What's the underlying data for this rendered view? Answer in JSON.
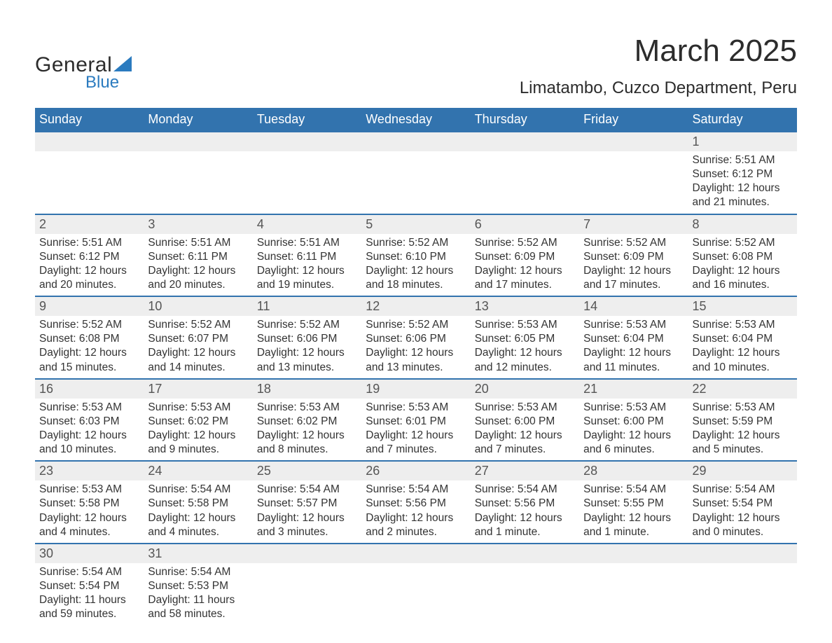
{
  "logo": {
    "line1": "General",
    "line2": "Blue",
    "sail_color": "#2b7bbf",
    "text_color": "#2c2c2c"
  },
  "title": "March 2025",
  "subtitle": "Limatambo, Cuzco Department, Peru",
  "colors": {
    "header_bg": "#3273ae",
    "header_text": "#ffffff",
    "daynum_bg": "#eeeeee",
    "border": "#3273ae",
    "body_text": "#333333",
    "page_bg": "#ffffff"
  },
  "weekdays": [
    "Sunday",
    "Monday",
    "Tuesday",
    "Wednesday",
    "Thursday",
    "Friday",
    "Saturday"
  ],
  "weeks": [
    [
      {
        "day": "",
        "sunrise": "",
        "sunset": "",
        "daylight": ""
      },
      {
        "day": "",
        "sunrise": "",
        "sunset": "",
        "daylight": ""
      },
      {
        "day": "",
        "sunrise": "",
        "sunset": "",
        "daylight": ""
      },
      {
        "day": "",
        "sunrise": "",
        "sunset": "",
        "daylight": ""
      },
      {
        "day": "",
        "sunrise": "",
        "sunset": "",
        "daylight": ""
      },
      {
        "day": "",
        "sunrise": "",
        "sunset": "",
        "daylight": ""
      },
      {
        "day": "1",
        "sunrise": "Sunrise: 5:51 AM",
        "sunset": "Sunset: 6:12 PM",
        "daylight": "Daylight: 12 hours and 21 minutes."
      }
    ],
    [
      {
        "day": "2",
        "sunrise": "Sunrise: 5:51 AM",
        "sunset": "Sunset: 6:12 PM",
        "daylight": "Daylight: 12 hours and 20 minutes."
      },
      {
        "day": "3",
        "sunrise": "Sunrise: 5:51 AM",
        "sunset": "Sunset: 6:11 PM",
        "daylight": "Daylight: 12 hours and 20 minutes."
      },
      {
        "day": "4",
        "sunrise": "Sunrise: 5:51 AM",
        "sunset": "Sunset: 6:11 PM",
        "daylight": "Daylight: 12 hours and 19 minutes."
      },
      {
        "day": "5",
        "sunrise": "Sunrise: 5:52 AM",
        "sunset": "Sunset: 6:10 PM",
        "daylight": "Daylight: 12 hours and 18 minutes."
      },
      {
        "day": "6",
        "sunrise": "Sunrise: 5:52 AM",
        "sunset": "Sunset: 6:09 PM",
        "daylight": "Daylight: 12 hours and 17 minutes."
      },
      {
        "day": "7",
        "sunrise": "Sunrise: 5:52 AM",
        "sunset": "Sunset: 6:09 PM",
        "daylight": "Daylight: 12 hours and 17 minutes."
      },
      {
        "day": "8",
        "sunrise": "Sunrise: 5:52 AM",
        "sunset": "Sunset: 6:08 PM",
        "daylight": "Daylight: 12 hours and 16 minutes."
      }
    ],
    [
      {
        "day": "9",
        "sunrise": "Sunrise: 5:52 AM",
        "sunset": "Sunset: 6:08 PM",
        "daylight": "Daylight: 12 hours and 15 minutes."
      },
      {
        "day": "10",
        "sunrise": "Sunrise: 5:52 AM",
        "sunset": "Sunset: 6:07 PM",
        "daylight": "Daylight: 12 hours and 14 minutes."
      },
      {
        "day": "11",
        "sunrise": "Sunrise: 5:52 AM",
        "sunset": "Sunset: 6:06 PM",
        "daylight": "Daylight: 12 hours and 13 minutes."
      },
      {
        "day": "12",
        "sunrise": "Sunrise: 5:52 AM",
        "sunset": "Sunset: 6:06 PM",
        "daylight": "Daylight: 12 hours and 13 minutes."
      },
      {
        "day": "13",
        "sunrise": "Sunrise: 5:53 AM",
        "sunset": "Sunset: 6:05 PM",
        "daylight": "Daylight: 12 hours and 12 minutes."
      },
      {
        "day": "14",
        "sunrise": "Sunrise: 5:53 AM",
        "sunset": "Sunset: 6:04 PM",
        "daylight": "Daylight: 12 hours and 11 minutes."
      },
      {
        "day": "15",
        "sunrise": "Sunrise: 5:53 AM",
        "sunset": "Sunset: 6:04 PM",
        "daylight": "Daylight: 12 hours and 10 minutes."
      }
    ],
    [
      {
        "day": "16",
        "sunrise": "Sunrise: 5:53 AM",
        "sunset": "Sunset: 6:03 PM",
        "daylight": "Daylight: 12 hours and 10 minutes."
      },
      {
        "day": "17",
        "sunrise": "Sunrise: 5:53 AM",
        "sunset": "Sunset: 6:02 PM",
        "daylight": "Daylight: 12 hours and 9 minutes."
      },
      {
        "day": "18",
        "sunrise": "Sunrise: 5:53 AM",
        "sunset": "Sunset: 6:02 PM",
        "daylight": "Daylight: 12 hours and 8 minutes."
      },
      {
        "day": "19",
        "sunrise": "Sunrise: 5:53 AM",
        "sunset": "Sunset: 6:01 PM",
        "daylight": "Daylight: 12 hours and 7 minutes."
      },
      {
        "day": "20",
        "sunrise": "Sunrise: 5:53 AM",
        "sunset": "Sunset: 6:00 PM",
        "daylight": "Daylight: 12 hours and 7 minutes."
      },
      {
        "day": "21",
        "sunrise": "Sunrise: 5:53 AM",
        "sunset": "Sunset: 6:00 PM",
        "daylight": "Daylight: 12 hours and 6 minutes."
      },
      {
        "day": "22",
        "sunrise": "Sunrise: 5:53 AM",
        "sunset": "Sunset: 5:59 PM",
        "daylight": "Daylight: 12 hours and 5 minutes."
      }
    ],
    [
      {
        "day": "23",
        "sunrise": "Sunrise: 5:53 AM",
        "sunset": "Sunset: 5:58 PM",
        "daylight": "Daylight: 12 hours and 4 minutes."
      },
      {
        "day": "24",
        "sunrise": "Sunrise: 5:54 AM",
        "sunset": "Sunset: 5:58 PM",
        "daylight": "Daylight: 12 hours and 4 minutes."
      },
      {
        "day": "25",
        "sunrise": "Sunrise: 5:54 AM",
        "sunset": "Sunset: 5:57 PM",
        "daylight": "Daylight: 12 hours and 3 minutes."
      },
      {
        "day": "26",
        "sunrise": "Sunrise: 5:54 AM",
        "sunset": "Sunset: 5:56 PM",
        "daylight": "Daylight: 12 hours and 2 minutes."
      },
      {
        "day": "27",
        "sunrise": "Sunrise: 5:54 AM",
        "sunset": "Sunset: 5:56 PM",
        "daylight": "Daylight: 12 hours and 1 minute."
      },
      {
        "day": "28",
        "sunrise": "Sunrise: 5:54 AM",
        "sunset": "Sunset: 5:55 PM",
        "daylight": "Daylight: 12 hours and 1 minute."
      },
      {
        "day": "29",
        "sunrise": "Sunrise: 5:54 AM",
        "sunset": "Sunset: 5:54 PM",
        "daylight": "Daylight: 12 hours and 0 minutes."
      }
    ],
    [
      {
        "day": "30",
        "sunrise": "Sunrise: 5:54 AM",
        "sunset": "Sunset: 5:54 PM",
        "daylight": "Daylight: 11 hours and 59 minutes."
      },
      {
        "day": "31",
        "sunrise": "Sunrise: 5:54 AM",
        "sunset": "Sunset: 5:53 PM",
        "daylight": "Daylight: 11 hours and 58 minutes."
      },
      {
        "day": "",
        "sunrise": "",
        "sunset": "",
        "daylight": ""
      },
      {
        "day": "",
        "sunrise": "",
        "sunset": "",
        "daylight": ""
      },
      {
        "day": "",
        "sunrise": "",
        "sunset": "",
        "daylight": ""
      },
      {
        "day": "",
        "sunrise": "",
        "sunset": "",
        "daylight": ""
      },
      {
        "day": "",
        "sunrise": "",
        "sunset": "",
        "daylight": ""
      }
    ]
  ]
}
